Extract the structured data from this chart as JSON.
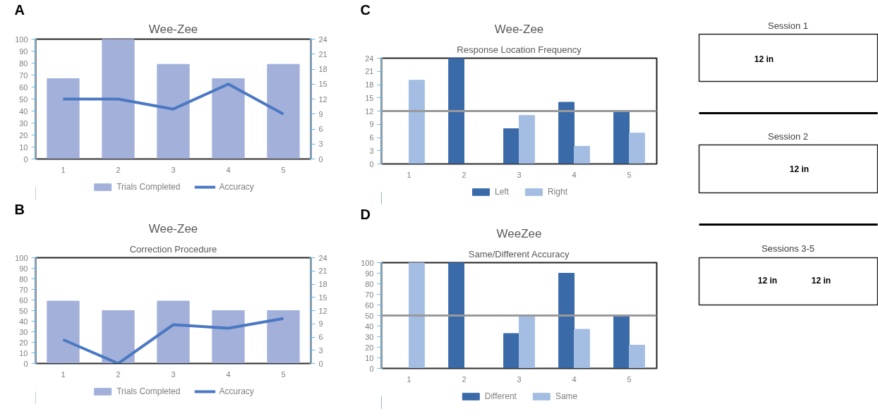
{
  "chart_data": [
    {
      "type": "bar",
      "title": "Wee-Zee",
      "annotations": [
        "A"
      ],
      "categories": [
        "1",
        "2",
        "3",
        "4",
        "5"
      ],
      "series": [
        {
          "name": "Trials Completed",
          "color": "#a2b0da",
          "values": [
            67,
            100,
            79,
            67,
            79
          ]
        },
        {
          "name": "Accuracy",
          "type": "line",
          "axis": "y2",
          "color": "#4a78c2",
          "values": [
            12,
            12,
            10,
            15,
            9
          ]
        }
      ],
      "ylim": [
        0,
        100
      ],
      "yticks": [
        0,
        10,
        20,
        30,
        40,
        50,
        60,
        70,
        80,
        90,
        100
      ],
      "y2lim": [
        0,
        24
      ],
      "y2ticks": [
        0,
        3,
        6,
        9,
        12,
        15,
        18,
        21,
        24
      ],
      "legend": "bottom",
      "grid": false
    },
    {
      "type": "bar",
      "title": "Wee-Zee",
      "subtitle": "Response Location Frequency",
      "annotations": [
        "C"
      ],
      "categories": [
        "1",
        "2",
        "3",
        "4",
        "5"
      ],
      "series": [
        {
          "name": "Left",
          "color": "#3a6aa8",
          "values": [
            0,
            24,
            8,
            14,
            12
          ]
        },
        {
          "name": "Right",
          "color": "#a3bde3",
          "values": [
            19,
            0,
            11,
            4,
            7
          ]
        }
      ],
      "ylim": [
        0,
        24
      ],
      "yticks": [
        0,
        3,
        6,
        9,
        12,
        15,
        18,
        21,
        24
      ],
      "ref_lines": [
        {
          "axis": "y",
          "value": 12,
          "color": "#999999"
        }
      ],
      "legend": "bottom",
      "grid": false
    },
    {
      "type": "bar",
      "title": "Wee-Zee",
      "subtitle": "Correction Procedure",
      "annotations": [
        "B"
      ],
      "categories": [
        "1",
        "2",
        "3",
        "4",
        "5"
      ],
      "series": [
        {
          "name": "Trials Completed",
          "color": "#a2b0da",
          "values": [
            59,
            50,
            59,
            50,
            50
          ]
        },
        {
          "name": "Accuracy",
          "type": "line",
          "axis": "y2",
          "color": "#4a78c2",
          "values": [
            5.4,
            0,
            8.8,
            8,
            10.2
          ]
        }
      ],
      "ylim": [
        0,
        100
      ],
      "yticks": [
        0,
        10,
        20,
        30,
        40,
        50,
        60,
        70,
        80,
        90,
        100
      ],
      "y2lim": [
        0,
        24
      ],
      "y2ticks": [
        0,
        3,
        6,
        9,
        12,
        15,
        18,
        21,
        24
      ],
      "legend": "bottom",
      "grid": false
    },
    {
      "type": "bar",
      "title": "WeeZee",
      "subtitle": "Same/Different Accuracy",
      "annotations": [
        "D"
      ],
      "categories": [
        "1",
        "2",
        "3",
        "4",
        "5"
      ],
      "series": [
        {
          "name": "Different",
          "color": "#3a6aa8",
          "values": [
            0,
            100,
            33,
            90,
            50
          ]
        },
        {
          "name": "Same",
          "color": "#a3bde3",
          "values": [
            100,
            0,
            50,
            37,
            22
          ]
        }
      ],
      "ylim": [
        0,
        100
      ],
      "yticks": [
        0,
        10,
        20,
        30,
        40,
        50,
        60,
        70,
        80,
        90,
        100
      ],
      "ref_lines": [
        {
          "axis": "y",
          "value": 50,
          "color": "#999999"
        }
      ],
      "legend": "bottom",
      "grid": false
    },
    {
      "type": "other",
      "annotations": [
        "Session 1",
        "12 in",
        "Session 2",
        "12 in",
        "Sessions 3-5",
        "12 in",
        "12 in"
      ]
    }
  ]
}
